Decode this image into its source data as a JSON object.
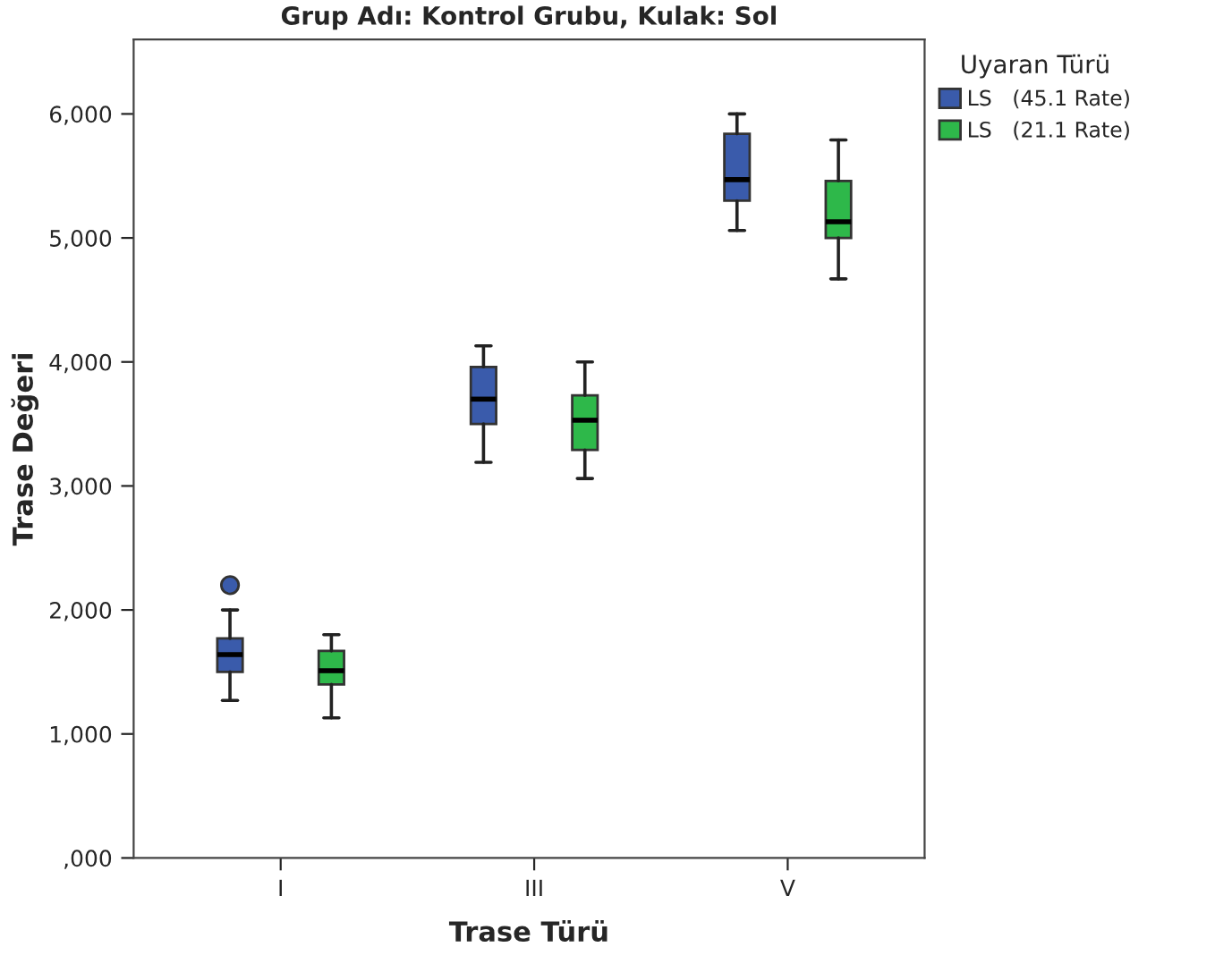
{
  "chart_data": {
    "type": "box",
    "title": "Grup Adı: Kontrol Grubu, Kulak: Sol",
    "xlabel": "Trase Türü",
    "ylabel": "Trase Değeri",
    "legend_title": "Uyaran Türü",
    "legend": "top right",
    "grid": false,
    "categories": [
      "I",
      "III",
      "V"
    ],
    "ylim": [
      0,
      6600
    ],
    "yticks": [
      {
        "value": 0,
        "label": ",000"
      },
      {
        "value": 1000,
        "label": "1,000"
      },
      {
        "value": 2000,
        "label": "2,000"
      },
      {
        "value": 3000,
        "label": "3,000"
      },
      {
        "value": 4000,
        "label": "4,000"
      },
      {
        "value": 5000,
        "label": "5,000"
      },
      {
        "value": 6000,
        "label": "6,000"
      }
    ],
    "series": [
      {
        "name": "LS   (45.1 Rate)",
        "color": "#3a5bab",
        "boxes": [
          {
            "low": 1270,
            "q1": 1500,
            "median": 1640,
            "q3": 1770,
            "high": 2000,
            "outliers": [
              2200
            ]
          },
          {
            "low": 3190,
            "q1": 3500,
            "median": 3700,
            "q3": 3960,
            "high": 4130
          },
          {
            "low": 5060,
            "q1": 5300,
            "median": 5470,
            "q3": 5840,
            "high": 6000
          }
        ]
      },
      {
        "name": "LS   (21.1 Rate)",
        "color": "#2eb84a",
        "boxes": [
          {
            "low": 1130,
            "q1": 1400,
            "median": 1510,
            "q3": 1670,
            "high": 1800
          },
          {
            "low": 3060,
            "q1": 3290,
            "median": 3530,
            "q3": 3730,
            "high": 4000
          },
          {
            "low": 4670,
            "q1": 5000,
            "median": 5130,
            "q3": 5460,
            "high": 5790
          }
        ]
      }
    ]
  }
}
